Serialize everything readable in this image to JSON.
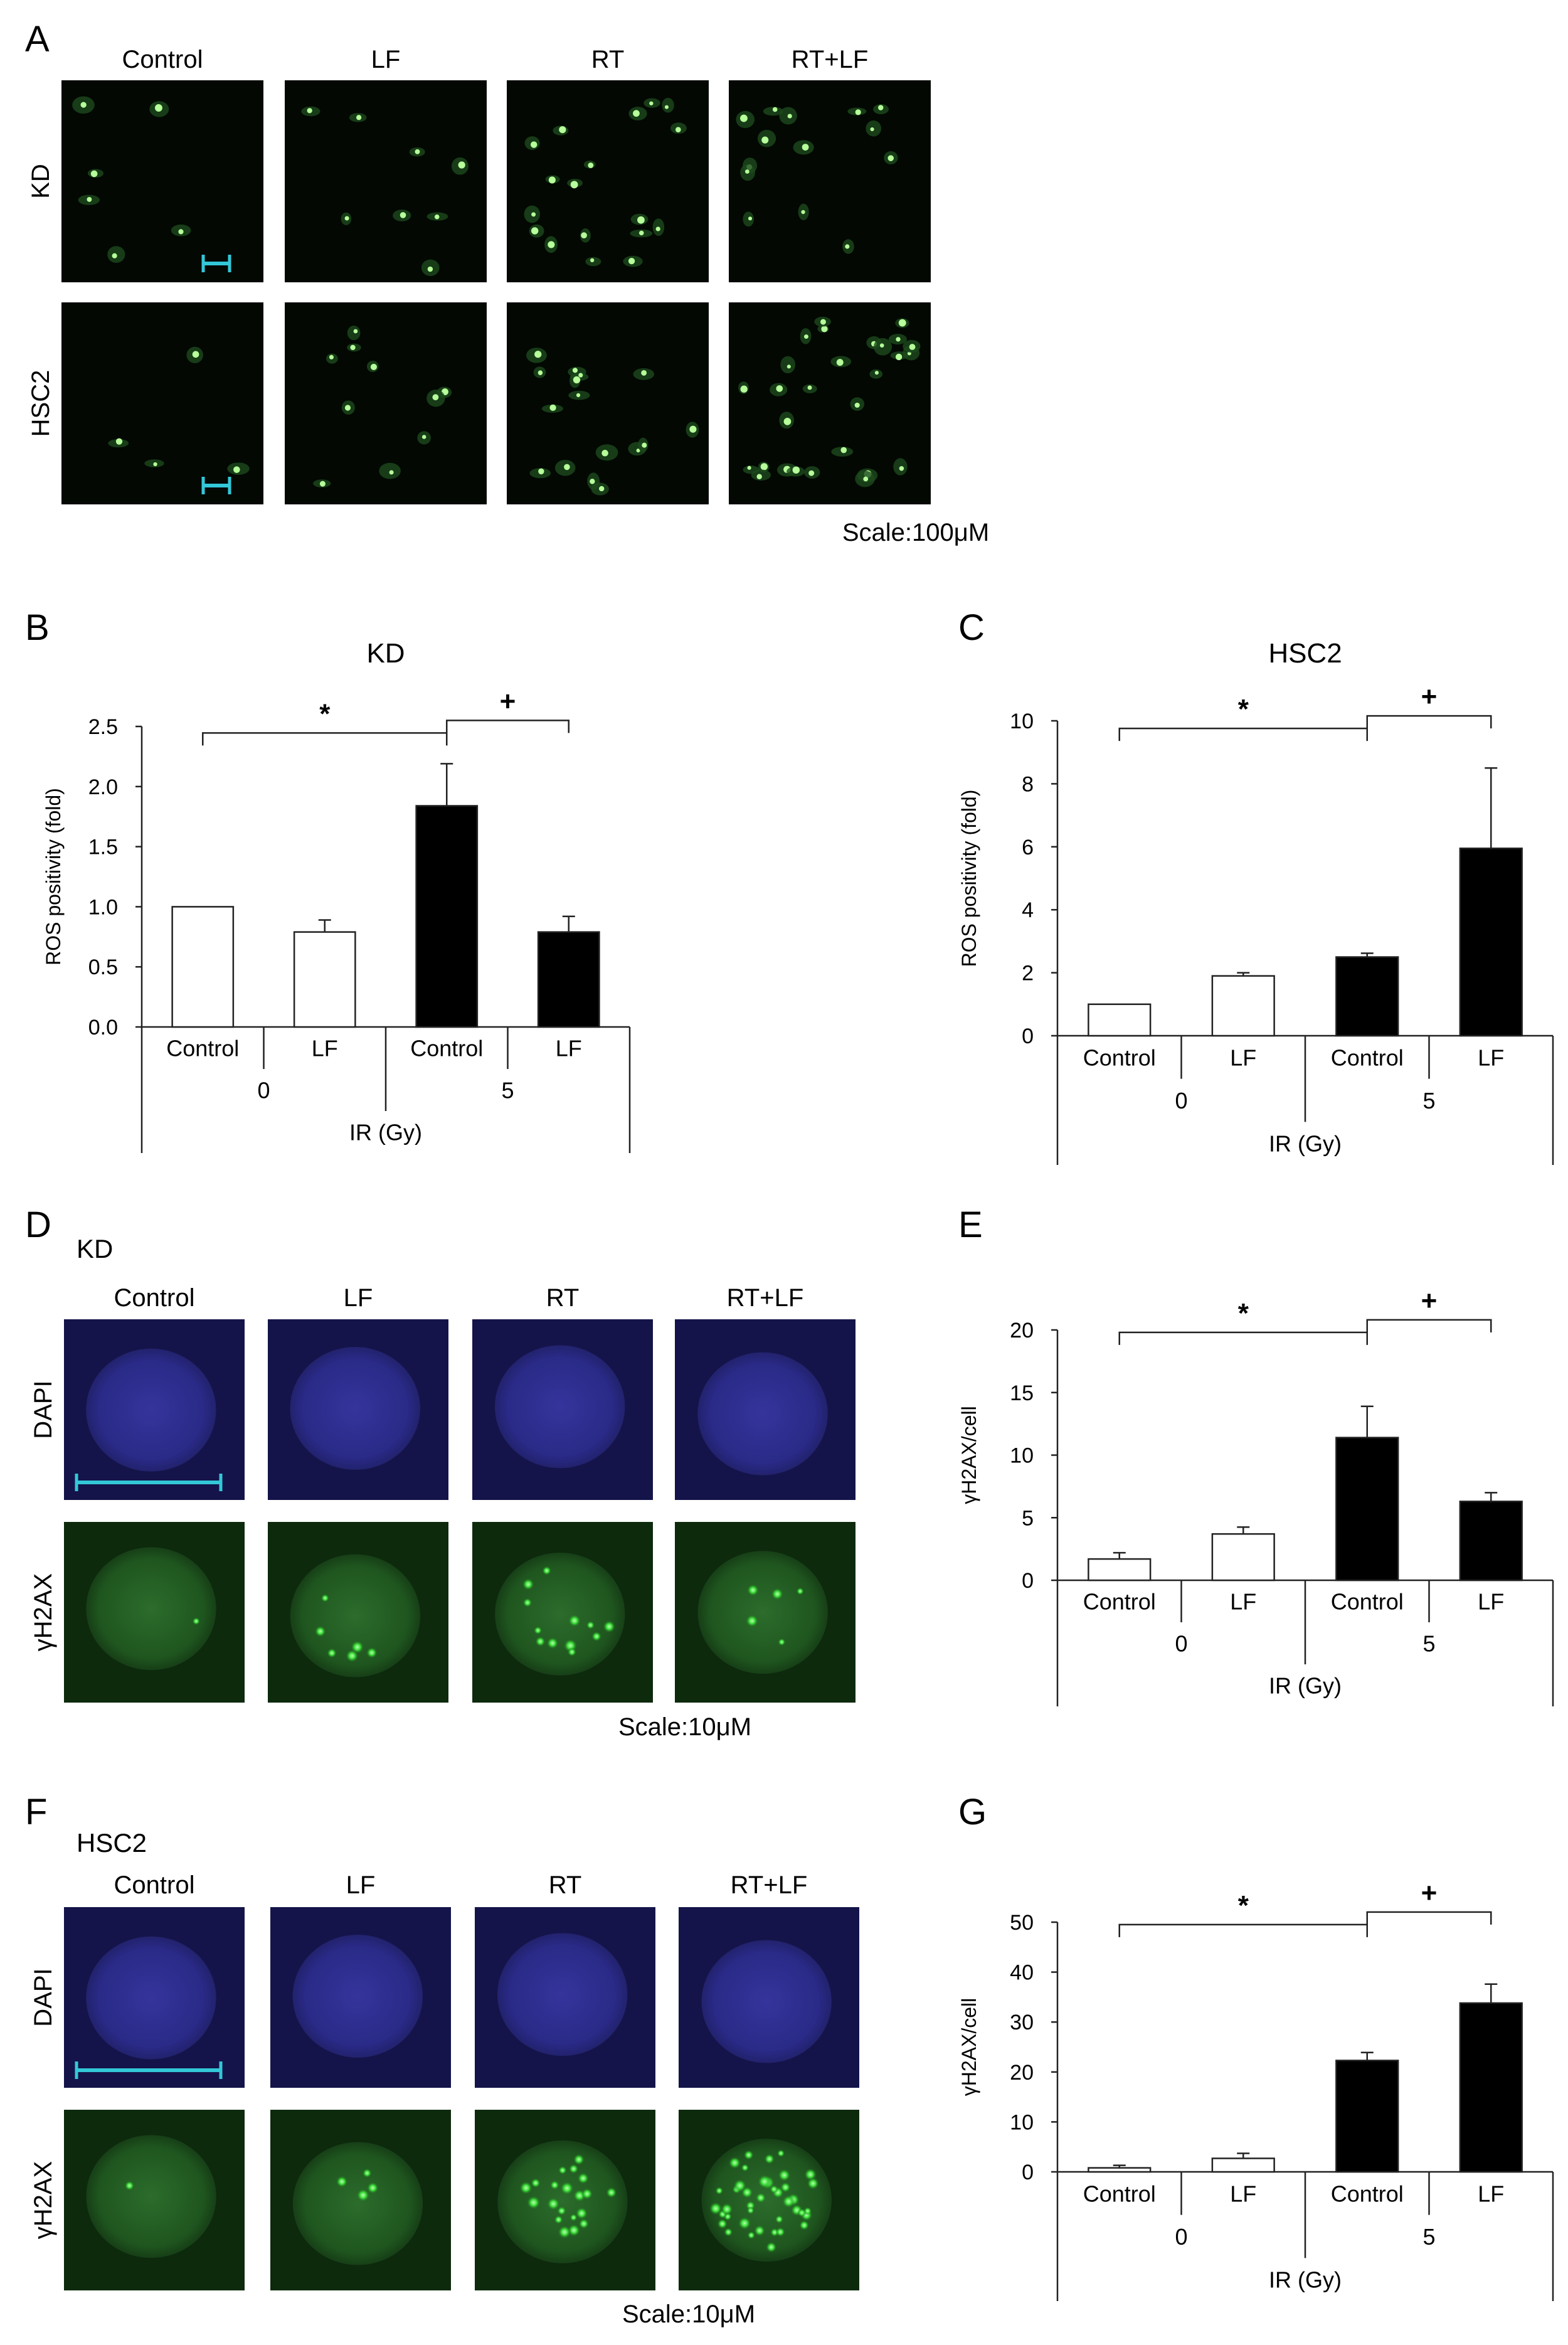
{
  "figure": {
    "panels": [
      {
        "letter": "A",
        "kind": "image"
      },
      {
        "letter": "B",
        "kind": "chart"
      },
      {
        "letter": "C",
        "kind": "chart"
      },
      {
        "letter": "D",
        "kind": "image"
      },
      {
        "letter": "E",
        "kind": "chart"
      },
      {
        "letter": "F",
        "kind": "image"
      },
      {
        "letter": "G",
        "kind": "chart"
      }
    ],
    "image_panels": [
      {
        "letter": "A",
        "header": "",
        "columns": [
          "Control",
          "LF",
          "RT",
          "RT+LF"
        ],
        "rows": [
          "KD",
          "HSC2"
        ],
        "stain": "ros",
        "scale_label": "Scale:100μM",
        "scale_bar_color": "#33c8d8"
      },
      {
        "letter": "D",
        "header": "KD",
        "columns": [
          "Control",
          "LF",
          "RT",
          "RT+LF"
        ],
        "rows": [
          "DAPI",
          "γH2AX"
        ],
        "stain": "nucleus",
        "foci_counts": [
          1,
          6,
          12,
          5
        ],
        "scale_label": "Scale:10μM",
        "scale_bar_color": "#33c8d8"
      },
      {
        "letter": "F",
        "header": "HSC2",
        "columns": [
          "Control",
          "LF",
          "RT",
          "RT+LF"
        ],
        "rows": [
          "DAPI",
          "γH2AX"
        ],
        "stain": "nucleus",
        "foci_counts": [
          1,
          4,
          20,
          40
        ],
        "scale_label": "Scale:10μM",
        "scale_bar_color": "#33c8d8"
      }
    ]
  },
  "chart_data": [
    {
      "panel": "B",
      "type": "bar",
      "title": "KD",
      "ylabel": "ROS positivity (fold)",
      "xlabel": "IR (Gy)",
      "categories": [
        "Control",
        "LF",
        "Control",
        "LF"
      ],
      "groups": [
        {
          "label": "0",
          "span": [
            0,
            1
          ]
        },
        {
          "label": "5",
          "span": [
            2,
            3
          ]
        }
      ],
      "values": [
        1.0,
        0.79,
        1.84,
        0.79
      ],
      "errors": [
        0.0,
        0.1,
        0.35,
        0.13
      ],
      "bar_colors": [
        "#ffffff",
        "#ffffff",
        "#000000",
        "#000000"
      ],
      "ylim": [
        0,
        2.5
      ],
      "yticks": [
        "0.0",
        "0.5",
        "1.0",
        "1.5",
        "2.0",
        "2.5"
      ],
      "annotations": [
        {
          "symbol": "*",
          "from": 0,
          "to": 2
        },
        {
          "symbol": "+",
          "from": 2,
          "to": 3
        }
      ]
    },
    {
      "panel": "C",
      "type": "bar",
      "title": "HSC2",
      "ylabel": "ROS positivity (fold)",
      "xlabel": "IR (Gy)",
      "categories": [
        "Control",
        "LF",
        "Control",
        "LF"
      ],
      "groups": [
        {
          "label": "0",
          "span": [
            0,
            1
          ]
        },
        {
          "label": "5",
          "span": [
            2,
            3
          ]
        }
      ],
      "values": [
        1.0,
        1.9,
        2.5,
        5.95
      ],
      "errors": [
        0.0,
        0.1,
        0.12,
        2.55
      ],
      "bar_colors": [
        "#ffffff",
        "#ffffff",
        "#000000",
        "#000000"
      ],
      "ylim": [
        0,
        10
      ],
      "yticks": [
        "0",
        "2",
        "4",
        "6",
        "8",
        "10"
      ],
      "annotations": [
        {
          "symbol": "*",
          "from": 0,
          "to": 2
        },
        {
          "symbol": "+",
          "from": 2,
          "to": 3
        }
      ]
    },
    {
      "panel": "E",
      "type": "bar",
      "title": "",
      "ylabel": "γH2AX/cell",
      "xlabel": "IR (Gy)",
      "categories": [
        "Control",
        "LF",
        "Control",
        "LF"
      ],
      "groups": [
        {
          "label": "0",
          "span": [
            0,
            1
          ]
        },
        {
          "label": "5",
          "span": [
            2,
            3
          ]
        }
      ],
      "values": [
        1.7,
        3.7,
        11.4,
        6.3
      ],
      "errors": [
        0.5,
        0.55,
        2.5,
        0.7
      ],
      "bar_colors": [
        "#ffffff",
        "#ffffff",
        "#000000",
        "#000000"
      ],
      "ylim": [
        0,
        20
      ],
      "yticks": [
        "0",
        "5",
        "10",
        "15",
        "20"
      ],
      "annotations": [
        {
          "symbol": "*",
          "from": 0,
          "to": 2
        },
        {
          "symbol": "+",
          "from": 2,
          "to": 3
        }
      ]
    },
    {
      "panel": "G",
      "type": "bar",
      "title": "",
      "ylabel": "γH2AX/cell",
      "xlabel": "IR (Gy)",
      "categories": [
        "Control",
        "LF",
        "Control",
        "LF"
      ],
      "groups": [
        {
          "label": "0",
          "span": [
            0,
            1
          ]
        },
        {
          "label": "5",
          "span": [
            2,
            3
          ]
        }
      ],
      "values": [
        0.8,
        2.7,
        22.3,
        33.8
      ],
      "errors": [
        0.5,
        1.0,
        1.6,
        3.8
      ],
      "bar_colors": [
        "#ffffff",
        "#ffffff",
        "#000000",
        "#000000"
      ],
      "ylim": [
        0,
        50
      ],
      "yticks": [
        "0",
        "10",
        "20",
        "30",
        "40",
        "50"
      ],
      "annotations": [
        {
          "symbol": "*",
          "from": 0,
          "to": 2
        },
        {
          "symbol": "+",
          "from": 2,
          "to": 3
        }
      ]
    }
  ]
}
